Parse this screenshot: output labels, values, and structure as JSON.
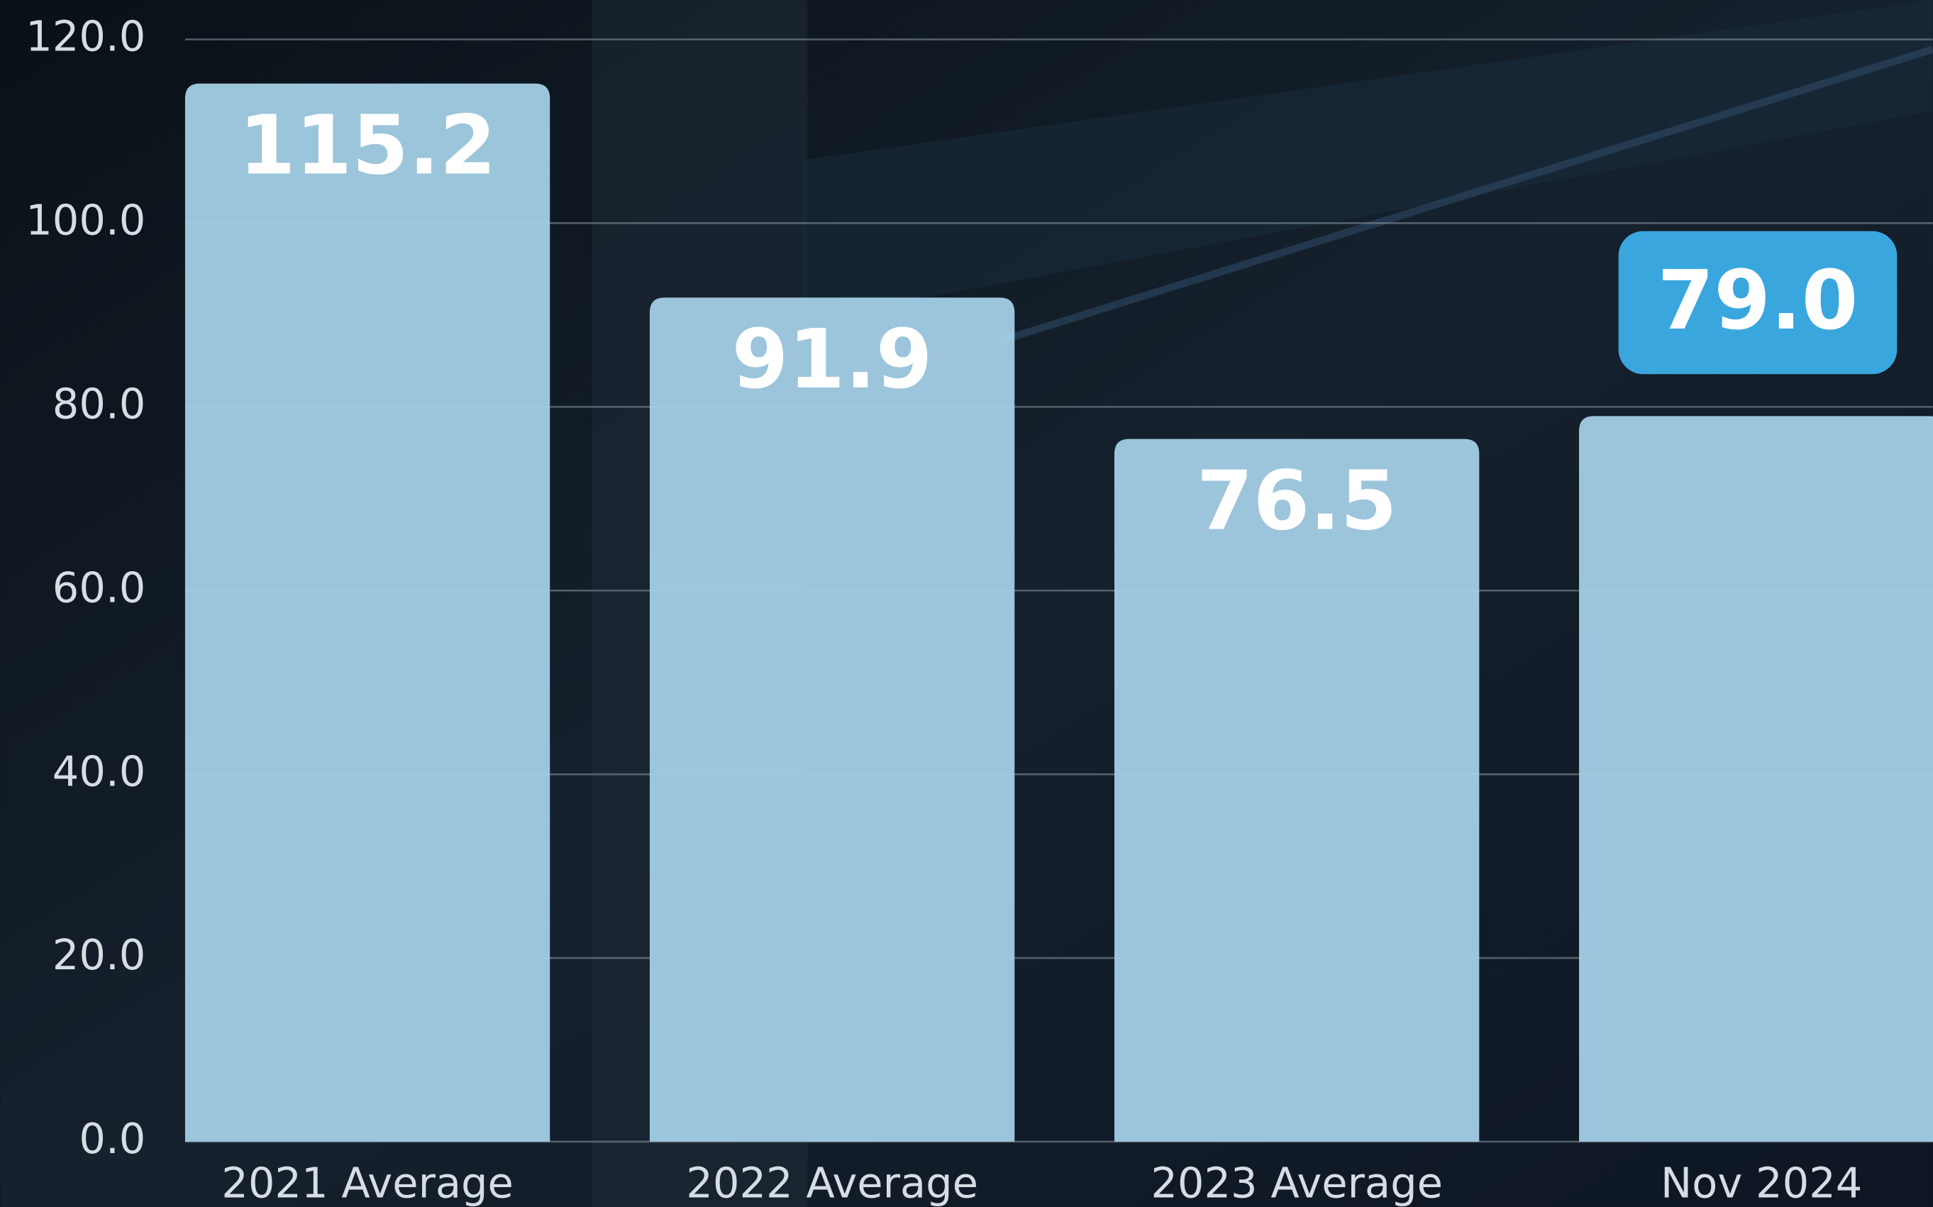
{
  "chart_data": {
    "type": "bar",
    "categories": [
      "2021 Average",
      "2022 Average",
      "2023 Average",
      "Nov 2024"
    ],
    "values": [
      115.2,
      91.9,
      76.5,
      79.0
    ],
    "value_labels": [
      "115.2",
      "91.9",
      "76.5",
      "79.0"
    ],
    "color": "#a3cfe6",
    "label_box_color": "#3aa6de",
    "label_box_index": 3,
    "ylim": [
      0,
      120
    ],
    "yticks": [
      {
        "value": 0,
        "label": "0.0"
      },
      {
        "value": 20,
        "label": "20.0"
      },
      {
        "value": 40,
        "label": "40.0"
      },
      {
        "value": 60,
        "label": "60.0"
      },
      {
        "value": 80,
        "label": "80.0"
      },
      {
        "value": 100,
        "label": "100.0"
      },
      {
        "value": 120,
        "label": "120.0"
      }
    ],
    "grid": true
  }
}
